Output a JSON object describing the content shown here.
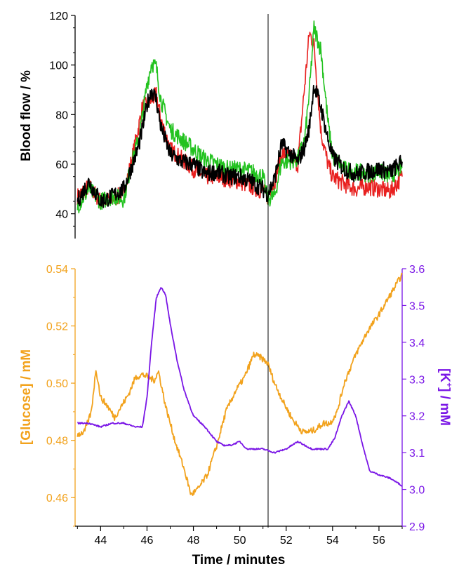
{
  "colors": {
    "red": "#e8201f",
    "green": "#22c21f",
    "black": "#000000",
    "orange": "#f2a21c",
    "purple": "#7a16e6"
  },
  "chart_data": [
    {
      "type": "line",
      "ylabel": "Blood flow  / %",
      "xlim": [
        42.9,
        57.0
      ],
      "ylim": [
        30,
        120
      ],
      "yticks": [
        40,
        60,
        80,
        100,
        120
      ],
      "grid": false,
      "series": [
        {
          "color": "red",
          "x": [
            43,
            43.5,
            44,
            44.5,
            45,
            45.3,
            45.6,
            45.8,
            46,
            46.2,
            46.4,
            46.6,
            47,
            47.5,
            48,
            48.5,
            49,
            49.5,
            50,
            50.5,
            51,
            51.2,
            51.5,
            51.8,
            52,
            52.5,
            52.8,
            53,
            53.2,
            53.5,
            53.8,
            54,
            54.5,
            55,
            55.5,
            56,
            56.5,
            57
          ],
          "y": [
            47,
            51,
            45,
            46,
            48,
            60,
            73,
            83,
            84,
            86,
            88,
            78,
            66,
            62,
            58,
            55,
            55,
            54,
            53,
            51,
            49,
            47,
            53,
            64,
            64,
            60,
            92,
            113,
            108,
            73,
            60,
            55,
            52,
            50,
            51,
            50,
            49,
            55
          ]
        },
        {
          "color": "green",
          "x": [
            43,
            43.5,
            44,
            44.5,
            45,
            45.3,
            45.6,
            45.8,
            46,
            46.2,
            46.4,
            46.6,
            47,
            47.5,
            48,
            48.5,
            49,
            49.5,
            50,
            50.5,
            51,
            51.2,
            51.5,
            51.8,
            52,
            52.5,
            52.8,
            53,
            53.2,
            53.5,
            53.8,
            54,
            54.5,
            55,
            55.5,
            56,
            56.5,
            57
          ],
          "y": [
            43,
            50,
            45,
            47,
            46,
            59,
            69,
            79,
            92,
            101,
            99,
            86,
            74,
            70,
            66,
            62,
            60,
            58,
            58,
            57,
            55,
            46,
            47,
            61,
            61,
            62,
            70,
            89,
            115,
            106,
            77,
            63,
            58,
            57,
            56,
            57,
            55,
            59
          ]
        },
        {
          "color": "black",
          "x": [
            43,
            43.5,
            44,
            44.5,
            45,
            45.3,
            45.6,
            45.8,
            46,
            46.2,
            46.4,
            46.6,
            47,
            47.5,
            48,
            48.5,
            49,
            49.5,
            50,
            50.5,
            51,
            51.2,
            51.5,
            51.8,
            52,
            52.5,
            52.8,
            53,
            53.2,
            53.5,
            53.8,
            54,
            54.5,
            55,
            55.5,
            56,
            56.5,
            57
          ],
          "y": [
            45,
            53,
            45,
            47,
            50,
            58,
            66,
            74,
            84,
            90,
            86,
            75,
            64,
            61,
            60,
            56,
            57,
            55,
            55,
            53,
            50,
            48,
            54,
            68,
            66,
            61,
            67,
            75,
            92,
            83,
            70,
            63,
            58,
            56,
            57,
            58,
            57,
            61
          ]
        }
      ]
    },
    {
      "type": "line",
      "xlabel": "Time / minutes",
      "ylabel": "[Glucose] / mM",
      "y2label": "[K+] / mM",
      "xlim": [
        42.9,
        57.0
      ],
      "xticks": [
        44,
        46,
        48,
        50,
        52,
        54,
        56
      ],
      "ylim": [
        0.45,
        0.54
      ],
      "yticks": [
        0.46,
        0.48,
        0.5,
        0.52,
        0.54
      ],
      "y2lim": [
        2.9,
        3.6
      ],
      "y2ticks": [
        2.9,
        3.0,
        3.1,
        3.2,
        3.3,
        3.4,
        3.5,
        3.6
      ],
      "grid": false,
      "series": [
        {
          "color": "orange",
          "axis": "left",
          "x": [
            43,
            43.3,
            43.6,
            43.8,
            44,
            44.3,
            44.6,
            44.9,
            45.2,
            45.5,
            45.8,
            46.1,
            46.3,
            46.5,
            46.8,
            47.2,
            47.6,
            47.9,
            48.2,
            48.6,
            49,
            49.4,
            49.8,
            50.2,
            50.6,
            50.9,
            51.2,
            51.5,
            51.9,
            52.3,
            52.7,
            53,
            53.3,
            53.6,
            53.9,
            54.2,
            54.5,
            55,
            55.5,
            56,
            56.5,
            57
          ],
          "y": [
            0.482,
            0.483,
            0.49,
            0.505,
            0.495,
            0.492,
            0.488,
            0.492,
            0.496,
            0.502,
            0.503,
            0.502,
            0.501,
            0.504,
            0.492,
            0.48,
            0.47,
            0.461,
            0.463,
            0.468,
            0.478,
            0.49,
            0.497,
            0.502,
            0.51,
            0.509,
            0.507,
            0.5,
            0.493,
            0.487,
            0.483,
            0.483,
            0.484,
            0.486,
            0.486,
            0.49,
            0.5,
            0.51,
            0.518,
            0.524,
            0.531,
            0.538
          ]
        },
        {
          "color": "purple",
          "axis": "right",
          "x": [
            43,
            43.5,
            44,
            44.5,
            45,
            45.5,
            45.8,
            46,
            46.2,
            46.4,
            46.6,
            46.8,
            47,
            47.3,
            47.6,
            48,
            48.5,
            49,
            49.3,
            49.6,
            50,
            50.3,
            50.6,
            51,
            51.5,
            52,
            52.5,
            52.8,
            53.1,
            53.4,
            53.8,
            54.1,
            54.4,
            54.7,
            55,
            55.3,
            55.6,
            56,
            56.5,
            57
          ],
          "y": [
            3.18,
            3.18,
            3.17,
            3.18,
            3.18,
            3.17,
            3.17,
            3.25,
            3.4,
            3.52,
            3.55,
            3.53,
            3.45,
            3.35,
            3.27,
            3.2,
            3.17,
            3.13,
            3.12,
            3.12,
            3.13,
            3.11,
            3.11,
            3.11,
            3.1,
            3.11,
            3.13,
            3.12,
            3.11,
            3.11,
            3.11,
            3.14,
            3.2,
            3.24,
            3.2,
            3.12,
            3.05,
            3.04,
            3.03,
            3.01
          ]
        }
      ]
    }
  ]
}
